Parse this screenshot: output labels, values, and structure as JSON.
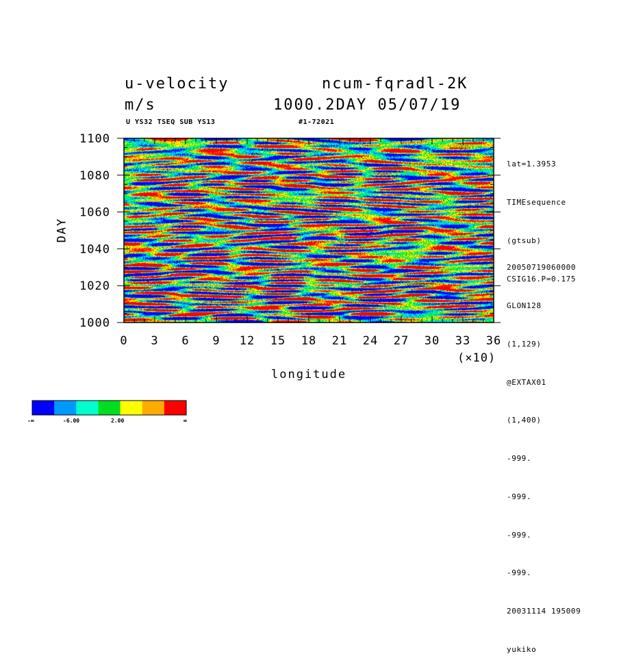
{
  "header": {
    "var_name": "u-velocity",
    "experiment": "ncum-fqradl-2K",
    "units": "m/s",
    "timestamp": "1000.2DAY 05/07/19",
    "subtitle_left": "U YS32 TSEQ SUB YS13",
    "subtitle_right": "#1-72021"
  },
  "side_info": {
    "top": [
      "lat=1.3953",
      "TIMEsequence",
      "(gtsub)",
      "CSIG16.P=0.175"
    ],
    "bottom": [
      "20050719060000",
      "GLON128",
      "(1,129)",
      "@EXTAX01",
      "(1,400)",
      "-999.",
      "-999.",
      "-999.",
      "-999.",
      "20031114 195009",
      "yukiko"
    ]
  },
  "colorbar": {
    "colors": [
      "#0000ff",
      "#0099ff",
      "#00ffcc",
      "#00dd22",
      "#ffff00",
      "#ffaa00",
      "#ff0000"
    ],
    "labels": [
      "-∞",
      "-6.00",
      "2.00",
      "∞"
    ]
  },
  "chart_data": {
    "type": "heatmap",
    "title": "u-velocity",
    "xlabel": "longitude",
    "ylabel": "DAY",
    "x_multiplier": "(×10)",
    "xlim": [
      0,
      36
    ],
    "ylim": [
      1000,
      1100
    ],
    "x_ticks": [
      "0",
      "3",
      "6",
      "9",
      "12",
      "15",
      "18",
      "21",
      "24",
      "27",
      "30",
      "33",
      "36"
    ],
    "y_ticks": [
      "1000",
      "1020",
      "1040",
      "1060",
      "1080",
      "1100"
    ],
    "levels": [
      "-∞",
      "-6.00",
      "2.00",
      "∞"
    ],
    "colors": [
      "#0000ff",
      "#0099ff",
      "#00ffcc",
      "#00dd22",
      "#ffff00",
      "#ffaa00",
      "#ff0000"
    ],
    "grid": false
  }
}
